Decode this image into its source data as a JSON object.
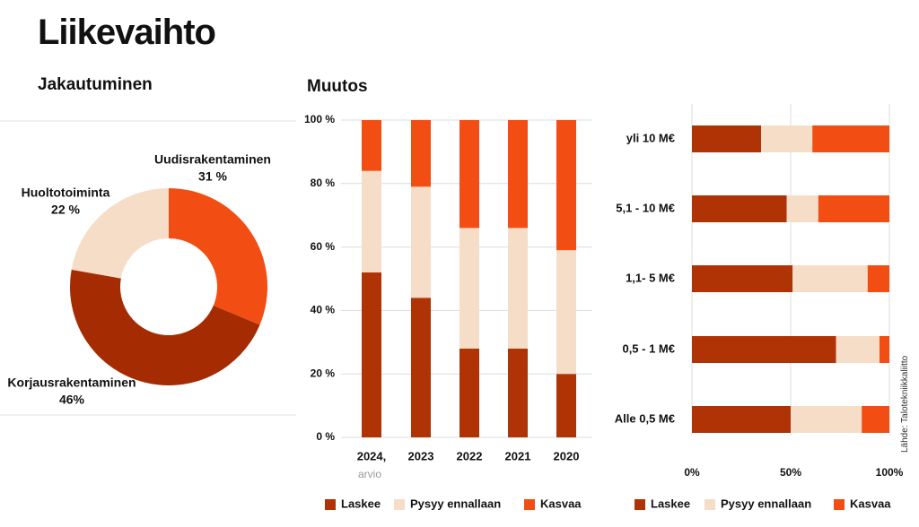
{
  "title": "Liikevaihto",
  "left_subtitle": "Jakautuminen",
  "mid_subtitle": "Muutos",
  "source": "Lähde: Talotekniikkaliitto",
  "colors": {
    "laskee": "#b03306",
    "pysyy": "#f5ddc8",
    "kasvaa": "#f24d12",
    "donut_dark": "#a42b02"
  },
  "chart_data": [
    {
      "type": "pie",
      "donut": true,
      "title": "Jakautuminen",
      "labels": [
        {
          "name": "Uudisrakentaminen",
          "pct_label": "31 %"
        },
        {
          "name": "Korjausrakentaminen",
          "pct_label": "46%"
        },
        {
          "name": "Huoltotoiminta",
          "pct_label": "22 %"
        }
      ],
      "values": [
        31,
        46,
        22
      ]
    },
    {
      "type": "bar",
      "stacked": true,
      "orientation": "vertical",
      "title": "Muutos",
      "categories": [
        "2024,",
        "2023",
        "2022",
        "2021",
        "2020"
      ],
      "category_sublabels": [
        "arvio",
        "",
        "",
        "",
        ""
      ],
      "ylim": [
        0,
        100
      ],
      "yticks": [
        "0 %",
        "20 %",
        "40 %",
        "60 %",
        "80 %",
        "100 %"
      ],
      "series": [
        {
          "name": "Laskee",
          "values": [
            52,
            44,
            28,
            28,
            20
          ]
        },
        {
          "name": "Pysyy ennallaan",
          "values": [
            32,
            35,
            38,
            38,
            39
          ]
        },
        {
          "name": "Kasvaa",
          "values": [
            16,
            21,
            34,
            34,
            41
          ]
        }
      ],
      "legend": "bottom"
    },
    {
      "type": "bar",
      "stacked": true,
      "orientation": "horizontal",
      "categories": [
        "yli 10 M€",
        "5,1 -  10 M€",
        "1,1-  5 M€",
        "0,5 -  1 M€",
        "Alle 0,5 M€"
      ],
      "xlim": [
        0,
        100
      ],
      "xticks": [
        "0%",
        "50%",
        "100%"
      ],
      "series": [
        {
          "name": "Laskee",
          "values": [
            35,
            48,
            51,
            73,
            50
          ]
        },
        {
          "name": "Pysyy ennallaan",
          "values": [
            26,
            16,
            38,
            22,
            36
          ]
        },
        {
          "name": "Kasvaa",
          "values": [
            39,
            36,
            11,
            5,
            14
          ]
        }
      ],
      "legend": "bottom"
    }
  ]
}
